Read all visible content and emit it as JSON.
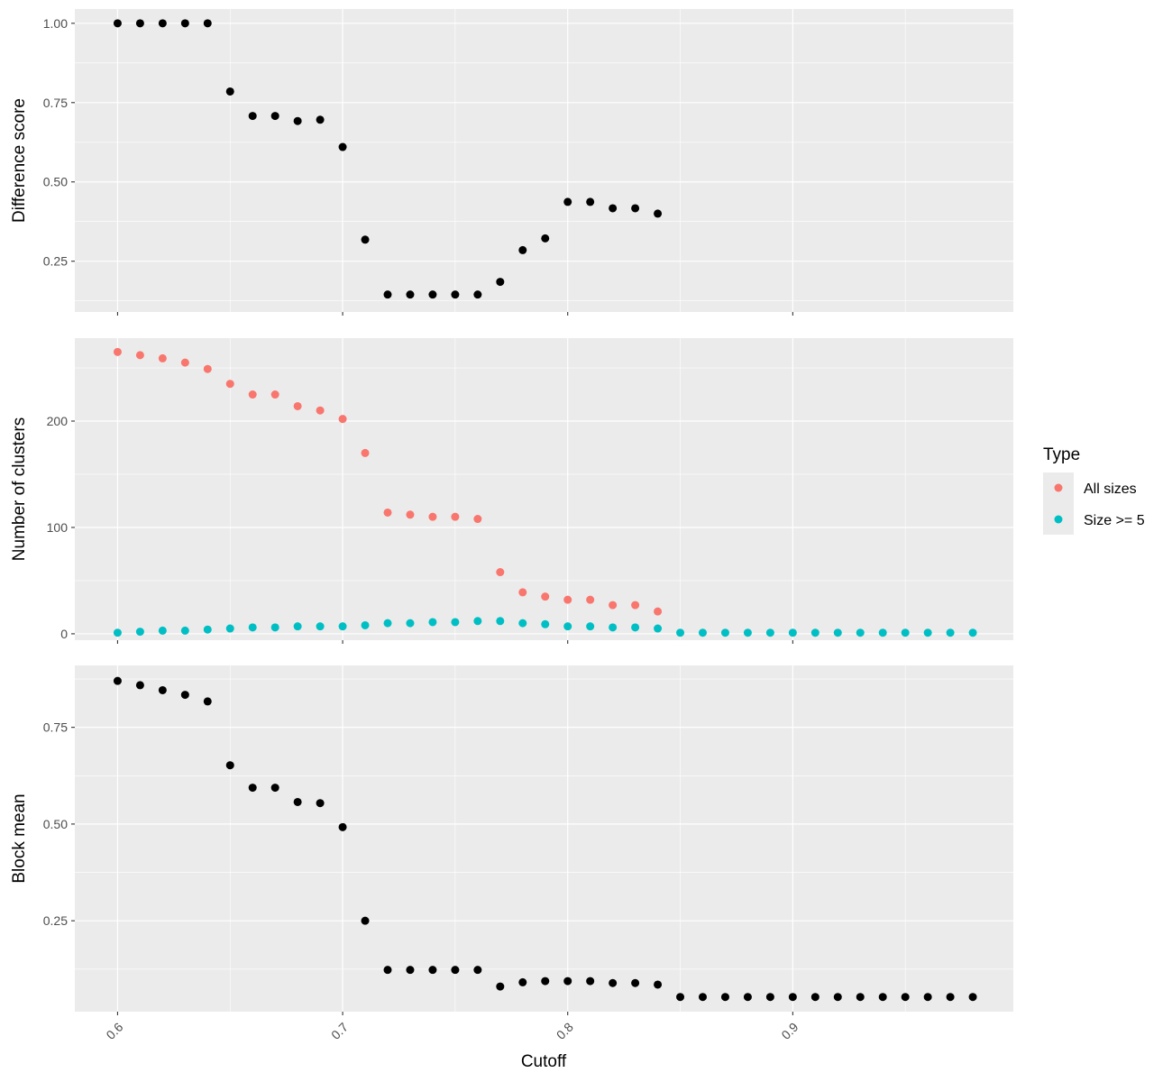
{
  "chart_data": {
    "type": "scatter",
    "layout": "faceted-vertical",
    "x_label": "Cutoff",
    "x_ticks": [
      0.6,
      0.7,
      0.8,
      0.9
    ],
    "x_tick_labels": [
      "0.6",
      "0.7",
      "0.8",
      "0.9"
    ],
    "xlim": [
      0.581,
      0.998
    ],
    "grid": true,
    "legend_placement": "right",
    "legend": {
      "title": "Type",
      "entries": [
        {
          "label": "All sizes",
          "color": "#F8766D"
        },
        {
          "label": "Size >= 5",
          "color": "#00BFC4"
        }
      ]
    },
    "panels": [
      {
        "ylabel": "Difference score",
        "ylim": [
          0.09,
          1.045
        ],
        "yticks": [
          0.25,
          0.5,
          0.75,
          1.0
        ],
        "ytick_labels": [
          "0.25",
          "0.50",
          "0.75",
          "1.00"
        ],
        "series": [
          {
            "color": "#000000",
            "points": [
              [
                0.6,
                1.0
              ],
              [
                0.61,
                1.0
              ],
              [
                0.62,
                1.0
              ],
              [
                0.63,
                1.0
              ],
              [
                0.64,
                1.0
              ],
              [
                0.65,
                0.785
              ],
              [
                0.66,
                0.708
              ],
              [
                0.67,
                0.708
              ],
              [
                0.68,
                0.692
              ],
              [
                0.69,
                0.696
              ],
              [
                0.7,
                0.61
              ],
              [
                0.71,
                0.318
              ],
              [
                0.72,
                0.145
              ],
              [
                0.73,
                0.145
              ],
              [
                0.74,
                0.145
              ],
              [
                0.75,
                0.145
              ],
              [
                0.76,
                0.145
              ],
              [
                0.77,
                0.185
              ],
              [
                0.78,
                0.285
              ],
              [
                0.79,
                0.322
              ],
              [
                0.8,
                0.437
              ],
              [
                0.81,
                0.437
              ],
              [
                0.82,
                0.417
              ],
              [
                0.83,
                0.417
              ],
              [
                0.84,
                0.4
              ]
            ]
          }
        ]
      },
      {
        "ylabel": "Number of clusters",
        "ylim": [
          -6,
          278
        ],
        "yticks": [
          0,
          100,
          200
        ],
        "ytick_labels": [
          "0",
          "100",
          "200"
        ],
        "series": [
          {
            "name": "All sizes",
            "color": "#F8766D",
            "points": [
              [
                0.6,
                265
              ],
              [
                0.61,
                262
              ],
              [
                0.62,
                259
              ],
              [
                0.63,
                255
              ],
              [
                0.64,
                249
              ],
              [
                0.65,
                235
              ],
              [
                0.66,
                225
              ],
              [
                0.67,
                225
              ],
              [
                0.68,
                214
              ],
              [
                0.69,
                210
              ],
              [
                0.7,
                202
              ],
              [
                0.71,
                170
              ],
              [
                0.72,
                114
              ],
              [
                0.73,
                112
              ],
              [
                0.74,
                110
              ],
              [
                0.75,
                110
              ],
              [
                0.76,
                108
              ],
              [
                0.77,
                58
              ],
              [
                0.78,
                39
              ],
              [
                0.79,
                35
              ],
              [
                0.8,
                32
              ],
              [
                0.81,
                32
              ],
              [
                0.82,
                27
              ],
              [
                0.83,
                27
              ],
              [
                0.84,
                21
              ]
            ]
          },
          {
            "name": "Size >= 5",
            "color": "#00BFC4",
            "points": [
              [
                0.6,
                1
              ],
              [
                0.61,
                2
              ],
              [
                0.62,
                3
              ],
              [
                0.63,
                3
              ],
              [
                0.64,
                4
              ],
              [
                0.65,
                5
              ],
              [
                0.66,
                6
              ],
              [
                0.67,
                6
              ],
              [
                0.68,
                7
              ],
              [
                0.69,
                7
              ],
              [
                0.7,
                7
              ],
              [
                0.71,
                8
              ],
              [
                0.72,
                10
              ],
              [
                0.73,
                10
              ],
              [
                0.74,
                11
              ],
              [
                0.75,
                11
              ],
              [
                0.76,
                12
              ],
              [
                0.77,
                12
              ],
              [
                0.78,
                10
              ],
              [
                0.79,
                9
              ],
              [
                0.8,
                7
              ],
              [
                0.81,
                7
              ],
              [
                0.82,
                6
              ],
              [
                0.83,
                6
              ],
              [
                0.84,
                5
              ],
              [
                0.85,
                1
              ],
              [
                0.86,
                1
              ],
              [
                0.87,
                1
              ],
              [
                0.88,
                1
              ],
              [
                0.89,
                1
              ],
              [
                0.9,
                1
              ],
              [
                0.91,
                1
              ],
              [
                0.92,
                1
              ],
              [
                0.93,
                1
              ],
              [
                0.94,
                1
              ],
              [
                0.95,
                1
              ],
              [
                0.96,
                1
              ],
              [
                0.97,
                1
              ],
              [
                0.98,
                1
              ]
            ]
          }
        ]
      },
      {
        "ylabel": "Block mean",
        "ylim": [
          0.015,
          0.91
        ],
        "yticks": [
          0.25,
          0.5,
          0.75
        ],
        "ytick_labels": [
          "0.25",
          "0.50",
          "0.75"
        ],
        "series": [
          {
            "color": "#000000",
            "points": [
              [
                0.6,
                0.87
              ],
              [
                0.61,
                0.859
              ],
              [
                0.62,
                0.846
              ],
              [
                0.63,
                0.834
              ],
              [
                0.64,
                0.817
              ],
              [
                0.65,
                0.652
              ],
              [
                0.66,
                0.594
              ],
              [
                0.67,
                0.594
              ],
              [
                0.68,
                0.557
              ],
              [
                0.69,
                0.554
              ],
              [
                0.7,
                0.492
              ],
              [
                0.71,
                0.25
              ],
              [
                0.72,
                0.123
              ],
              [
                0.73,
                0.123
              ],
              [
                0.74,
                0.123
              ],
              [
                0.75,
                0.123
              ],
              [
                0.76,
                0.123
              ],
              [
                0.77,
                0.08
              ],
              [
                0.78,
                0.091
              ],
              [
                0.79,
                0.094
              ],
              [
                0.8,
                0.094
              ],
              [
                0.81,
                0.094
              ],
              [
                0.82,
                0.089
              ],
              [
                0.83,
                0.089
              ],
              [
                0.84,
                0.085
              ],
              [
                0.85,
                0.053
              ],
              [
                0.86,
                0.053
              ],
              [
                0.87,
                0.053
              ],
              [
                0.88,
                0.053
              ],
              [
                0.89,
                0.053
              ],
              [
                0.9,
                0.053
              ],
              [
                0.91,
                0.053
              ],
              [
                0.92,
                0.053
              ],
              [
                0.93,
                0.053
              ],
              [
                0.94,
                0.053
              ],
              [
                0.95,
                0.053
              ],
              [
                0.96,
                0.053
              ],
              [
                0.97,
                0.053
              ],
              [
                0.98,
                0.053
              ]
            ]
          }
        ]
      }
    ]
  }
}
